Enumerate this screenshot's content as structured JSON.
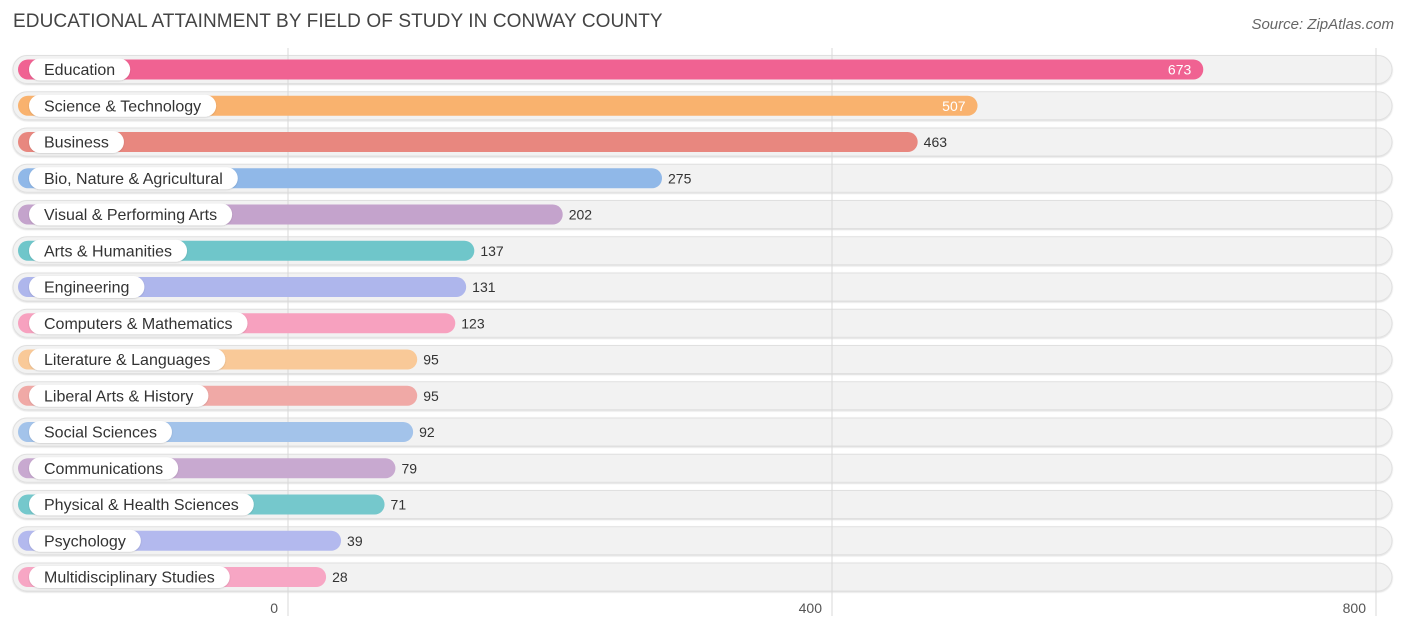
{
  "chart_data": {
    "type": "bar",
    "orientation": "horizontal",
    "title": "EDUCATIONAL ATTAINMENT BY FIELD OF STUDY IN CONWAY COUNTY",
    "source": "Source: ZipAtlas.com",
    "categories": [
      "Education",
      "Science & Technology",
      "Business",
      "Bio, Nature & Agricultural",
      "Visual & Performing Arts",
      "Arts & Humanities",
      "Engineering",
      "Computers & Mathematics",
      "Literature & Languages",
      "Liberal Arts & History",
      "Social Sciences",
      "Communications",
      "Physical & Health Sciences",
      "Psychology",
      "Multidisciplinary Studies"
    ],
    "values": [
      673,
      507,
      463,
      275,
      202,
      137,
      131,
      123,
      95,
      95,
      92,
      79,
      71,
      39,
      28
    ],
    "colors": [
      "#f06292",
      "#f9b26e",
      "#e8877f",
      "#90b8e8",
      "#c4a3cc",
      "#6fc6ca",
      "#aeb6ec",
      "#f7a1bf",
      "#f9c998",
      "#f0a9a6",
      "#a3c3ea",
      "#c8a9d0",
      "#75c8cc",
      "#b3b9ee",
      "#f7a6c4"
    ],
    "xlim": [
      0,
      800
    ],
    "xticks": [
      0,
      400,
      800
    ],
    "xtick_labels": [
      "0",
      "400",
      "800"
    ],
    "grid": true,
    "value_label_inside_threshold": 500
  }
}
